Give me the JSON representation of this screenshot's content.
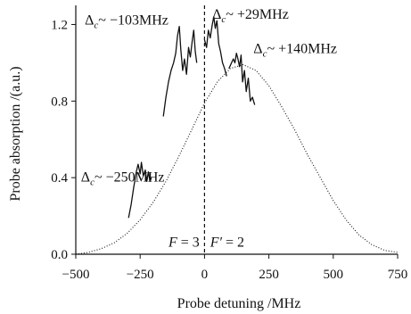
{
  "chart_data": {
    "type": "line",
    "title": "",
    "xlabel": "Probe detuning /MHz",
    "ylabel": "Probe absorption /(a.u.)",
    "xlim": [
      -500,
      750
    ],
    "ylim": [
      0.0,
      1.3
    ],
    "xticks": [
      -500,
      -250,
      0,
      250,
      500,
      750
    ],
    "yticks": [
      0.0,
      0.4,
      0.8,
      1.2
    ],
    "xtick_labels": [
      "−500",
      "−250",
      "0",
      "250",
      "500",
      "750"
    ],
    "ytick_labels": [
      "0.0",
      "0.4",
      "0.8",
      "1.2"
    ],
    "grid": false,
    "legend": "none",
    "vertical_marker": {
      "x": 0,
      "style": "dashed"
    },
    "series": [
      {
        "style": "dotted",
        "x": [
          -500,
          -450,
          -400,
          -350,
          -300,
          -250,
          -200,
          -150,
          -100,
          -50,
          0,
          50,
          100,
          150,
          200,
          250,
          300,
          350,
          400,
          450,
          500,
          550,
          600,
          650,
          700,
          750
        ],
        "y": [
          0.0,
          0.01,
          0.03,
          0.06,
          0.11,
          0.18,
          0.27,
          0.38,
          0.51,
          0.65,
          0.79,
          0.9,
          0.97,
          0.99,
          0.96,
          0.88,
          0.77,
          0.65,
          0.52,
          0.4,
          0.28,
          0.18,
          0.1,
          0.05,
          0.02,
          0.01
        ]
      },
      {
        "style": "solid",
        "x": [
          -295,
          -285,
          -275,
          -265,
          -258,
          -250,
          -245,
          -238,
          -230,
          -224,
          -218,
          -212,
          -206
        ],
        "y": [
          0.19,
          0.26,
          0.35,
          0.43,
          0.47,
          0.42,
          0.48,
          0.41,
          0.44,
          0.38,
          0.43,
          0.38,
          0.4
        ]
      },
      {
        "style": "solid",
        "x": [
          -160,
          -150,
          -140,
          -130,
          -120,
          -112,
          -105,
          -98,
          -92,
          -85,
          -78,
          -70,
          -62,
          -55,
          -48,
          -42,
          -36,
          -30
        ],
        "y": [
          0.72,
          0.82,
          0.9,
          0.96,
          1.0,
          1.05,
          1.14,
          1.19,
          1.07,
          0.96,
          1.02,
          0.94,
          1.08,
          1.03,
          1.11,
          1.17,
          1.06,
          1.0
        ]
      },
      {
        "style": "solid",
        "x": [
          0,
          8,
          15,
          22,
          30,
          36,
          42,
          48,
          55,
          62,
          70,
          78,
          86
        ],
        "y": [
          1.12,
          1.08,
          1.17,
          1.13,
          1.2,
          1.24,
          1.18,
          1.22,
          1.1,
          1.06,
          1.0,
          0.97,
          0.93
        ]
      },
      {
        "style": "solid",
        "x": [
          95,
          105,
          112,
          118,
          124,
          130,
          136,
          142,
          148,
          155,
          162,
          170,
          178,
          186,
          195
        ],
        "y": [
          0.97,
          1.0,
          1.02,
          1.0,
          1.05,
          1.02,
          0.98,
          1.04,
          0.9,
          0.96,
          0.85,
          0.92,
          0.8,
          0.82,
          0.78
        ]
      }
    ],
    "annotations": [
      {
        "id": "delta-m250",
        "prefix": "Δ",
        "sub": "c",
        "text": "~ −250MHz",
        "x": -480,
        "y": 0.38
      },
      {
        "id": "delta-m103",
        "prefix": "Δ",
        "sub": "c",
        "text": "~ −103MHz",
        "x": -465,
        "y": 1.2
      },
      {
        "id": "delta-p29",
        "prefix": "Δ",
        "sub": "c",
        "text": "~ +29MHz",
        "x": 30,
        "y": 1.23
      },
      {
        "id": "delta-p140",
        "prefix": "Δ",
        "sub": "c",
        "text": "~ +140MHz",
        "x": 190,
        "y": 1.05
      }
    ],
    "state_labels": [
      {
        "id": "f3",
        "var": "F",
        "text": " = 3",
        "x": -140,
        "y": 0.03
      },
      {
        "id": "fp2",
        "var": "F′",
        "text": " = 2",
        "x": 22,
        "y": 0.03
      }
    ]
  }
}
